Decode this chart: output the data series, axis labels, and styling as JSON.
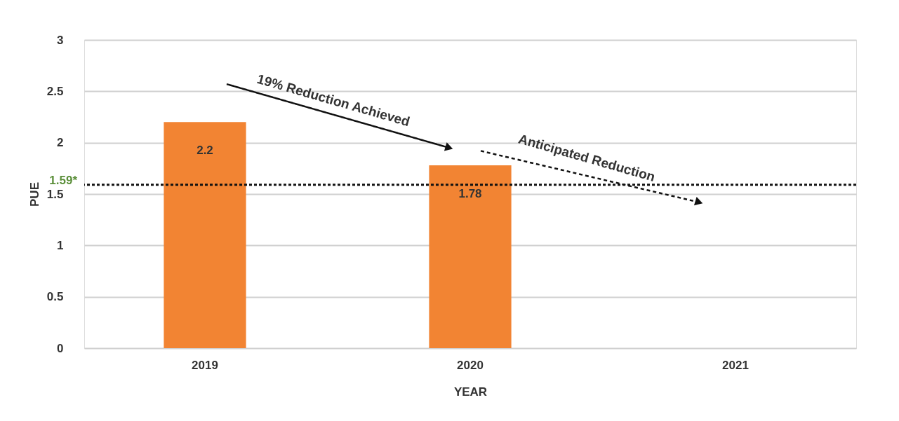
{
  "chart_data": {
    "type": "bar",
    "xlabel": "YEAR",
    "ylabel": "PUE",
    "categories": [
      "2019",
      "2020",
      "2021"
    ],
    "series": [
      {
        "color": "#f28433",
        "values": [
          2.2,
          1.78,
          null
        ]
      }
    ],
    "ylim": [
      0,
      3
    ],
    "yticks": [
      0,
      0.5,
      1,
      1.5,
      2,
      2.5,
      3
    ],
    "grid": "y",
    "data_labels": true,
    "ref_lines": [
      {
        "axis": "y",
        "value": 1.59,
        "label": "1.59*",
        "line_style": "dotted"
      }
    ],
    "annotations": [
      "19% Reduction Achieved",
      "Anticipated Reduction"
    ]
  }
}
